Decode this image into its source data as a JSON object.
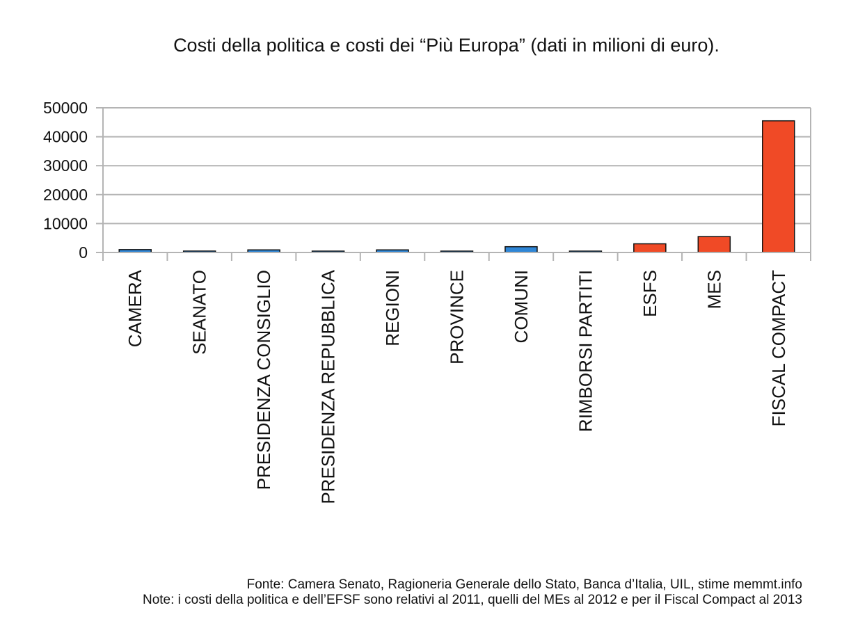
{
  "chart_data": {
    "type": "bar",
    "title": "Costi della politica e costi dei “Più Europa” (dati in milioni di euro).",
    "categories": [
      "CAMERA",
      "SEANATO",
      "PRESIDENZA CONSIGLIO",
      "PRESIDENZA REPUBBLICA",
      "REGIONI",
      "PROVINCE",
      "COMUNI",
      "RIMBORSI PARTITI",
      "ESFS",
      "MES",
      "FISCAL COMPACT"
    ],
    "values": [
      1000,
      500,
      900,
      250,
      900,
      300,
      2000,
      100,
      3000,
      5500,
      45500
    ],
    "colors": [
      "#2f86d6",
      "#2f86d6",
      "#2f86d6",
      "#2f86d6",
      "#2f86d6",
      "#2f86d6",
      "#2f86d6",
      "#2f86d6",
      "#f04a26",
      "#f04a26",
      "#f04a26"
    ],
    "ylim": [
      0,
      50000
    ],
    "yticks": [
      0,
      10000,
      20000,
      30000,
      40000,
      50000
    ],
    "grid": true,
    "xlabel": "",
    "ylabel": ""
  },
  "notes": {
    "source": "Fonte: Camera Senato, Ragioneria Generale dello Stato, Banca d’Italia, UIL, stime memmt.info",
    "note": "Note: i costi della politica e dell’EFSF sono relativi al 2011, quelli del MEs al 2012 e per il Fiscal Compact al 2013"
  }
}
